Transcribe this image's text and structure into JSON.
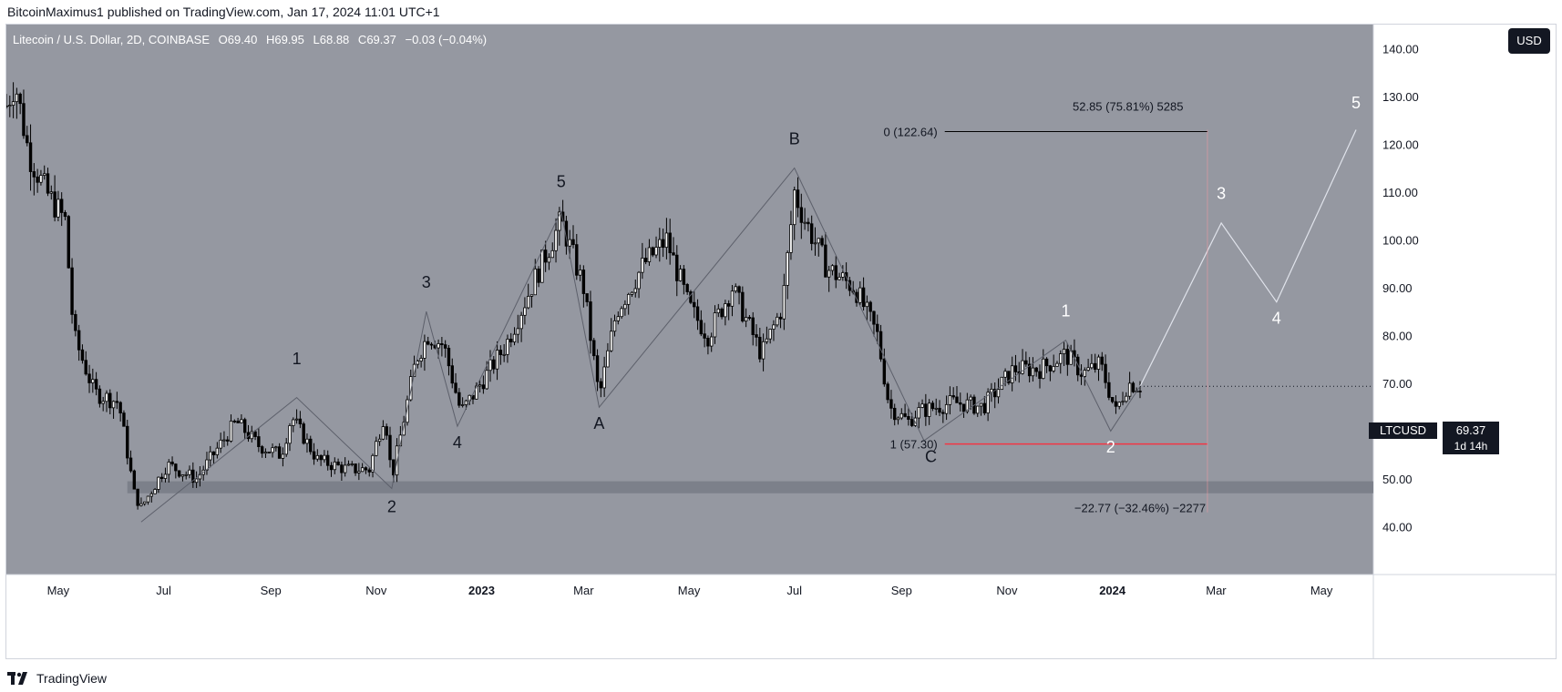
{
  "header": {
    "publisher_line": "BitcoinMaximus1 published on TradingView.com, Jan 17, 2024 11:01 UTC+1"
  },
  "legend": {
    "symbol": "Litecoin / U.S. Dollar, 2D, COINBASE",
    "o_label": "O",
    "o_value": "69.40",
    "h_label": "H",
    "h_value": "69.95",
    "l_label": "L",
    "l_value": "68.88",
    "c_label": "C",
    "c_value": "69.37",
    "change": "−0.03 (−0.04%)"
  },
  "currency_button": "USD",
  "footer": {
    "brand": "TradingView"
  },
  "price_tag": {
    "ticker": "LTCUSD",
    "price": "69.37",
    "countdown": "1d 14h"
  },
  "colors": {
    "plot_bg": "#9598a1",
    "candle": "#000000",
    "white_ink": "#ffffff",
    "support_band": "#787b86",
    "red_line": "#f23645",
    "line_gray": "#5d606b"
  },
  "chart_data": {
    "type": "candlestick",
    "ylim": [
      30,
      145
    ],
    "y_ticks": [
      40,
      50,
      60,
      70,
      80,
      90,
      100,
      110,
      120,
      130,
      140
    ],
    "y_tick_labels": [
      "40.00",
      "50.00",
      "60.00",
      "70.00",
      "80.00",
      "90.00",
      "100.00",
      "110.00",
      "120.00",
      "130.00",
      "140.00"
    ],
    "x_range": [
      "2022-04-01",
      "2024-05-31"
    ],
    "x_ticks": [
      {
        "date": "2022-05-01",
        "label": "May"
      },
      {
        "date": "2022-07-01",
        "label": "Jul"
      },
      {
        "date": "2022-09-01",
        "label": "Sep"
      },
      {
        "date": "2022-11-01",
        "label": "Nov"
      },
      {
        "date": "2023-01-01",
        "label": "2023"
      },
      {
        "date": "2023-03-01",
        "label": "Mar"
      },
      {
        "date": "2023-05-01",
        "label": "May"
      },
      {
        "date": "2023-07-01",
        "label": "Jul"
      },
      {
        "date": "2023-09-01",
        "label": "Sep"
      },
      {
        "date": "2023-11-01",
        "label": "Nov"
      },
      {
        "date": "2024-01-01",
        "label": "2024"
      },
      {
        "date": "2024-03-01",
        "label": "Mar"
      },
      {
        "date": "2024-05-01",
        "label": "May"
      }
    ],
    "price_path": [
      [
        "2022-04-01",
        128
      ],
      [
        "2022-04-06",
        133
      ],
      [
        "2022-04-14",
        118
      ],
      [
        "2022-04-24",
        110
      ],
      [
        "2022-05-05",
        104
      ],
      [
        "2022-05-10",
        80
      ],
      [
        "2022-05-22",
        68
      ],
      [
        "2022-06-05",
        66
      ],
      [
        "2022-06-14",
        47
      ],
      [
        "2022-06-18",
        44
      ],
      [
        "2022-07-03",
        53
      ],
      [
        "2022-07-20",
        50
      ],
      [
        "2022-08-12",
        62
      ],
      [
        "2022-08-25",
        57
      ],
      [
        "2022-09-07",
        55
      ],
      [
        "2022-09-13",
        63
      ],
      [
        "2022-09-28",
        54
      ],
      [
        "2022-10-15",
        52
      ],
      [
        "2022-10-28",
        52
      ],
      [
        "2022-11-06",
        64
      ],
      [
        "2022-11-10",
        50
      ],
      [
        "2022-11-24",
        75
      ],
      [
        "2022-12-01",
        80
      ],
      [
        "2022-12-10",
        78
      ],
      [
        "2022-12-20",
        64
      ],
      [
        "2022-12-28",
        68
      ],
      [
        "2023-01-15",
        78
      ],
      [
        "2023-02-01",
        92
      ],
      [
        "2023-02-16",
        104
      ],
      [
        "2023-03-01",
        90
      ],
      [
        "2023-03-10",
        67
      ],
      [
        "2023-03-20",
        85
      ],
      [
        "2023-04-05",
        95
      ],
      [
        "2023-04-18",
        100
      ],
      [
        "2023-05-01",
        86
      ],
      [
        "2023-05-12",
        80
      ],
      [
        "2023-05-26",
        90
      ],
      [
        "2023-06-12",
        76
      ],
      [
        "2023-06-24",
        86
      ],
      [
        "2023-07-01",
        110
      ],
      [
        "2023-07-06",
        105
      ],
      [
        "2023-07-20",
        94
      ],
      [
        "2023-08-05",
        90
      ],
      [
        "2023-08-18",
        80
      ],
      [
        "2023-08-25",
        65
      ],
      [
        "2023-09-05",
        62
      ],
      [
        "2023-09-10",
        64
      ],
      [
        "2023-10-01",
        66
      ],
      [
        "2023-10-18",
        65
      ],
      [
        "2023-11-05",
        73
      ],
      [
        "2023-11-20",
        73
      ],
      [
        "2023-12-05",
        76
      ],
      [
        "2023-12-15",
        72
      ],
      [
        "2023-12-25",
        74
      ],
      [
        "2024-01-03",
        64
      ],
      [
        "2024-01-10",
        70
      ],
      [
        "2024-01-17",
        69.4
      ]
    ],
    "last": {
      "o": 69.4,
      "h": 69.95,
      "l": 68.88,
      "c": 69.37
    },
    "support_zone": [
      47,
      49.5
    ],
    "wave_lines": [
      {
        "points": [
          [
            "2022-06-18",
            41
          ],
          [
            "2022-09-16",
            67
          ],
          [
            "2022-11-10",
            48
          ],
          [
            "2022-11-30",
            85
          ],
          [
            "2022-12-18",
            61
          ],
          [
            "2023-02-16",
            106
          ],
          [
            "2023-03-10",
            65
          ],
          [
            "2023-07-01",
            115
          ],
          [
            "2023-09-14",
            58
          ]
        ]
      },
      {
        "points": [
          [
            "2023-09-14",
            58
          ],
          [
            "2023-12-05",
            79
          ],
          [
            "2023-12-31",
            60
          ],
          [
            "2024-01-17",
            69.37
          ]
        ]
      }
    ],
    "projection": [
      [
        "2024-01-17",
        69.37
      ],
      [
        "2024-03-04",
        103.5
      ],
      [
        "2024-04-05",
        87
      ],
      [
        "2024-05-21",
        123
      ]
    ],
    "wave_labels": [
      {
        "text": "1",
        "date": "2022-09-16",
        "price": 74,
        "color": "black"
      },
      {
        "text": "2",
        "date": "2022-11-10",
        "price": 43,
        "color": "black"
      },
      {
        "text": "3",
        "date": "2022-11-30",
        "price": 90,
        "color": "black"
      },
      {
        "text": "4",
        "date": "2022-12-18",
        "price": 56.5,
        "color": "black"
      },
      {
        "text": "5",
        "date": "2023-02-16",
        "price": 111,
        "color": "black"
      },
      {
        "text": "A",
        "date": "2023-03-10",
        "price": 60.5,
        "color": "black"
      },
      {
        "text": "B",
        "date": "2023-07-01",
        "price": 120,
        "color": "black"
      },
      {
        "text": "C",
        "date": "2023-09-18",
        "price": 53.5,
        "color": "black"
      },
      {
        "text": "1",
        "date": "2023-12-05",
        "price": 84,
        "color": "white"
      },
      {
        "text": "2",
        "date": "2023-12-31",
        "price": 55.5,
        "color": "white"
      },
      {
        "text": "3",
        "date": "2024-03-04",
        "price": 108.5,
        "color": "white"
      },
      {
        "text": "4",
        "date": "2024-04-05",
        "price": 82.5,
        "color": "white"
      },
      {
        "text": "5",
        "date": "2024-05-21",
        "price": 127.5,
        "color": "white"
      }
    ],
    "fib_levels": [
      {
        "label": "0 (122.64)",
        "price": 122.64,
        "from": "2023-09-26",
        "to": "2024-02-25",
        "color": "#000000"
      },
      {
        "label": "1 (57.30)",
        "price": 57.3,
        "from": "2023-09-26",
        "to": "2024-02-25",
        "color": "#f23645"
      }
    ],
    "measure_labels": [
      {
        "text": "52.85 (75.81%) 5285",
        "date": "2024-01-10",
        "price": 127
      },
      {
        "text": "−22.77 (−32.46%) −2277",
        "date": "2024-01-17",
        "price": 43
      }
    ]
  }
}
